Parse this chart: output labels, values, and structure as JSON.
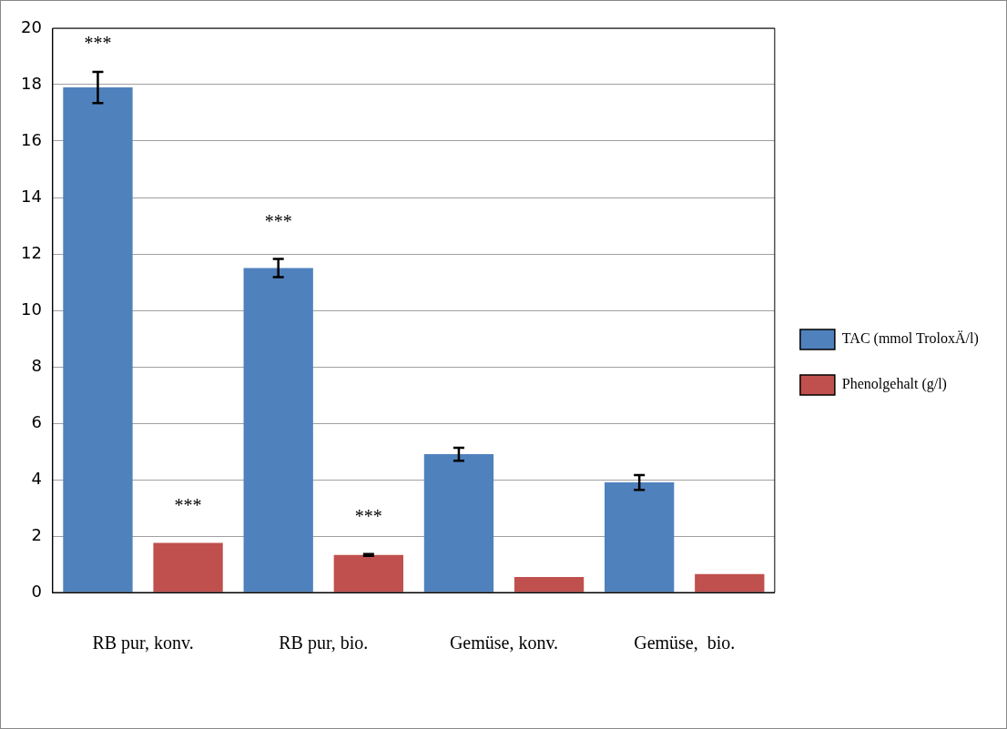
{
  "chart_data": {
    "type": "bar",
    "categories": [
      "RB pur, konv.",
      "RB pur, bio.",
      "Gemüse, konv.",
      "Gemüse,  bio."
    ],
    "series": [
      {
        "name": "TAC (mmol TroloxÄ/l)",
        "color": "#4f81bd",
        "values": [
          17.9,
          11.5,
          4.9,
          3.9
        ],
        "errors": [
          0.55,
          0.32,
          0.23,
          0.26
        ]
      },
      {
        "name": "Phenolgehalt (g/l)",
        "color": "#c0504d",
        "values": [
          1.76,
          1.33,
          0.55,
          0.65
        ],
        "errors": [
          null,
          0.03,
          null,
          null
        ]
      }
    ],
    "ylim": [
      0,
      20
    ],
    "yticks": [
      0,
      2,
      4,
      6,
      8,
      10,
      12,
      14,
      16,
      18,
      20
    ],
    "grid": "y",
    "legend": "right",
    "annotations": [
      "***",
      "***",
      "***",
      "***"
    ]
  }
}
